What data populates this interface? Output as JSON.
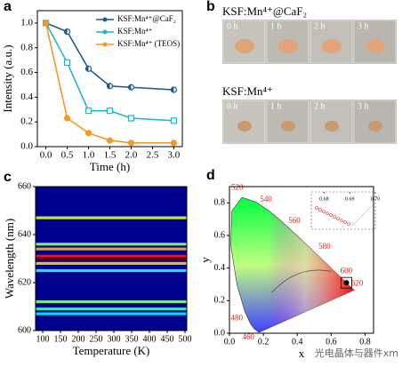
{
  "chart_data": [
    {
      "type": "line",
      "panel_label": "a",
      "xlabel": "Time (h)",
      "ylabel": "Intensity (a.u.)",
      "x": [
        0,
        0.5,
        1,
        1.5,
        2,
        3
      ],
      "xlim": [
        -0.2,
        3.2
      ],
      "xticks": [
        {
          "value": 0,
          "label": "0.0"
        },
        0.5,
        {
          "value": 1,
          "label": "1.0"
        },
        1.5,
        {
          "value": 2,
          "label": "2.0"
        },
        2.5,
        {
          "value": 3,
          "label": "3.0"
        }
      ],
      "ylim": [
        0,
        1.1
      ],
      "yticks": [
        {
          "value": 0,
          "label": "0.0"
        },
        0.2,
        0.4,
        0.6,
        0.8,
        {
          "value": 1,
          "label": "1.0"
        }
      ],
      "legend": "upper right",
      "series": [
        {
          "name": "KSF:Mn⁴⁺@CaF₂",
          "color": "#1f5a8c",
          "marker": "half-circle",
          "values": [
            1.0,
            0.93,
            0.63,
            0.49,
            0.48,
            0.46
          ]
        },
        {
          "name": "KSF:Mn⁴⁺",
          "color": "#27b4c8",
          "marker": "square",
          "values": [
            1.0,
            0.68,
            0.29,
            0.29,
            0.23,
            0.21
          ]
        },
        {
          "name": "KSF:Mn⁴⁺ (TEOS)",
          "color": "#f2992a",
          "marker": "circle",
          "values": [
            1.0,
            0.23,
            0.11,
            0.05,
            0.03,
            0.03
          ]
        }
      ]
    },
    {
      "type": "image_grid",
      "panel_label": "b",
      "groups": [
        {
          "name": "KSF:Mn⁴⁺@CaF₂",
          "times": [
            "0 h",
            "1 h",
            "2 h",
            "3 h"
          ]
        },
        {
          "name": "KSF:Mn⁴⁺",
          "times": [
            "0 h",
            "1 h",
            "2 h",
            "3 h"
          ]
        }
      ]
    },
    {
      "type": "heatmap",
      "panel_label": "c",
      "xlabel": "Temperature (K)",
      "ylabel": "Wavelength (nm)",
      "xlim": [
        80,
        505
      ],
      "xticks": [
        100,
        150,
        200,
        250,
        300,
        350,
        400,
        450,
        500
      ],
      "ylim": [
        600,
        660
      ],
      "yticks": [
        600,
        620,
        640,
        660
      ],
      "bands": {
        "wavelength": [
          647,
          636,
          634,
          631,
          630,
          628,
          625,
          612,
          609,
          607
        ],
        "intensity": [
          0.45,
          0.35,
          0.6,
          0.8,
          1.0,
          0.55,
          0.2,
          0.35,
          0.25,
          0.15
        ]
      }
    },
    {
      "type": "cie",
      "panel_label": "d",
      "xlabel": "x",
      "ylabel": "y",
      "xlim": [
        0,
        0.85
      ],
      "xticks": [
        {
          "value": 0,
          "label": "0.0"
        },
        0.2,
        0.4,
        0.6,
        0.8
      ],
      "ylim": [
        0,
        0.9
      ],
      "yticks": [
        {
          "value": 0,
          "label": "0.0"
        },
        0.2,
        0.4,
        0.6,
        0.8
      ],
      "locus": {
        "wavelength": [
          380,
          460,
          470,
          480,
          490,
          500,
          510,
          520,
          530,
          540,
          550,
          560,
          570,
          580,
          590,
          600,
          610,
          620,
          700
        ],
        "x": [
          0.174,
          0.144,
          0.124,
          0.091,
          0.045,
          0.008,
          0.014,
          0.074,
          0.155,
          0.23,
          0.302,
          0.373,
          0.444,
          0.512,
          0.575,
          0.627,
          0.666,
          0.691,
          0.735
        ],
        "y": [
          0.005,
          0.03,
          0.058,
          0.133,
          0.295,
          0.538,
          0.75,
          0.834,
          0.806,
          0.754,
          0.692,
          0.624,
          0.555,
          0.487,
          0.424,
          0.372,
          0.334,
          0.308,
          0.265
        ]
      },
      "labeled_wavelengths": [
        460,
        480,
        520,
        540,
        560,
        580,
        600,
        620
      ],
      "points": {
        "x": [
          0.69
        ],
        "y": [
          0.31
        ]
      },
      "inset_xticks": [
        0.68,
        0.69,
        {
          "value": 0.7,
          "label": "0.70"
        }
      ],
      "watermark": "光电晶体与器件xm"
    }
  ]
}
